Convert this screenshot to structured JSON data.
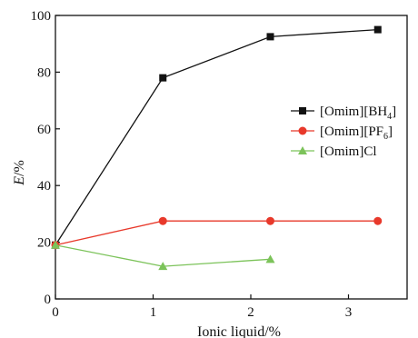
{
  "chart_data": {
    "type": "line",
    "xlabel": "Ionic liquid/%",
    "ylabel_main": "E",
    "ylabel_unit": "/%",
    "xlim": [
      0,
      3.6
    ],
    "ylim": [
      0,
      100
    ],
    "xticks": [
      "0",
      "1",
      "2",
      "3"
    ],
    "yticks": [
      "0",
      "20",
      "40",
      "60",
      "80",
      "100"
    ],
    "legend_position": "center-right",
    "grid": false,
    "series": [
      {
        "name": "[Omim][BH4]",
        "label_main": "[Omim][BH",
        "label_sub": "4",
        "label_tail": "]",
        "color": "#111111",
        "marker": "square",
        "x": [
          0,
          1.1,
          2.2,
          3.3
        ],
        "y": [
          19,
          78,
          92.5,
          95
        ]
      },
      {
        "name": "[Omim][PF6]",
        "label_main": "[Omim][PF",
        "label_sub": "6",
        "label_tail": "]",
        "color": "#e8392b",
        "marker": "circle",
        "x": [
          0,
          1.1,
          2.2,
          3.3
        ],
        "y": [
          19,
          27.5,
          27.5,
          27.5
        ]
      },
      {
        "name": "[Omim]Cl",
        "label_main": "[Omim]Cl",
        "label_sub": "",
        "label_tail": "",
        "color": "#7cc35a",
        "marker": "triangle",
        "x": [
          0,
          1.1,
          2.2
        ],
        "y": [
          19,
          11.5,
          14
        ]
      }
    ]
  }
}
